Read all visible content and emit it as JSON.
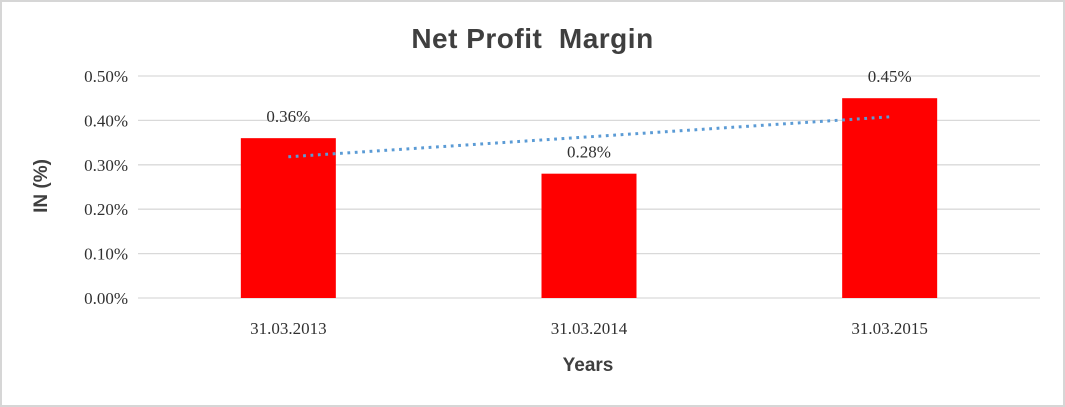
{
  "chart_data": {
    "type": "bar",
    "title": "Net Profit  Margin",
    "xlabel": "Years",
    "ylabel": "IN (%)",
    "categories": [
      "31.03.2013",
      "31.03.2014",
      "31.03.2015"
    ],
    "values": [
      0.36,
      0.28,
      0.45
    ],
    "data_labels": [
      "0.36%",
      "0.28%",
      "0.45%"
    ],
    "y_ticks": [
      {
        "value": 0.0,
        "label": "0.00%"
      },
      {
        "value": 0.1,
        "label": "0.10%"
      },
      {
        "value": 0.2,
        "label": "0.20%"
      },
      {
        "value": 0.3,
        "label": "0.30%"
      },
      {
        "value": 0.4,
        "label": "0.40%"
      },
      {
        "value": 0.5,
        "label": "0.50%"
      }
    ],
    "ylim": [
      0,
      0.5
    ],
    "grid": true,
    "legend_position": "none",
    "bar_color": "#ff0000",
    "gridline_color": "#d9d9d9",
    "text_color": "#3f3f3f",
    "frame_border_color": "#d6d6d6",
    "trendline": {
      "type": "linear",
      "style": "dotted",
      "color": "#5b9bd5",
      "start_value": 0.318,
      "end_value": 0.408
    }
  }
}
